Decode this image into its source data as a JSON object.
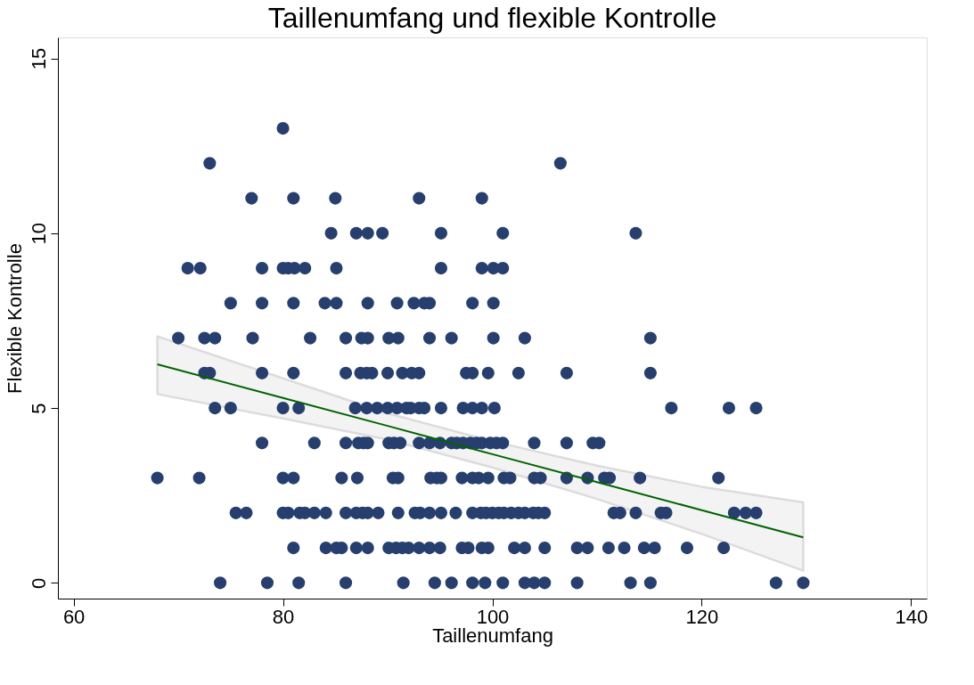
{
  "chart_data": {
    "type": "scatter",
    "title": "Taillenumfang und flexible Kontrolle",
    "xlabel": "Taillenumfang",
    "ylabel": "Flexible Kontrolle",
    "xlim": [
      58.5,
      141.5
    ],
    "ylim": [
      -0.45,
      15.6
    ],
    "xticks": [
      60,
      80,
      100,
      120,
      140
    ],
    "yticks": [
      0,
      5,
      10,
      15
    ],
    "grid": false,
    "series": [
      {
        "color": "#263f6e",
        "marker": "circle",
        "x": [
          80.0,
          73.0,
          106.5,
          77.0,
          81.0,
          85.0,
          93.0,
          99.0,
          84.6,
          87.0,
          88.1,
          89.5,
          95.1,
          101.0,
          113.7,
          70.9,
          72.1,
          78.0,
          80.0,
          80.5,
          81.1,
          82.1,
          85.1,
          95.1,
          99.0,
          100.1,
          101.0,
          75.0,
          78.0,
          81.0,
          84.0,
          85.1,
          88.1,
          90.9,
          92.5,
          93.5,
          94.0,
          98.1,
          100.1,
          70.0,
          72.5,
          73.5,
          77.1,
          82.6,
          86.0,
          87.5,
          88.1,
          90.1,
          91.0,
          94.0,
          96.1,
          100.1,
          103.1,
          115.1,
          72.5,
          73.0,
          78.0,
          81.0,
          86.0,
          87.4,
          88.0,
          88.5,
          90.0,
          91.4,
          92.3,
          93.0,
          97.5,
          98.1,
          99.6,
          102.5,
          107.1,
          115.1,
          73.5,
          75.0,
          80.0,
          81.5,
          86.9,
          88.0,
          89.0,
          90.0,
          90.9,
          91.8,
          92.2,
          93.0,
          93.5,
          95.1,
          97.2,
          98.1,
          99.0,
          100.2,
          117.1,
          122.6,
          125.2,
          78.0,
          83.0,
          86.0,
          87.2,
          87.7,
          88.1,
          90.1,
          90.6,
          91.2,
          93.0,
          94.0,
          95.0,
          96.1,
          96.6,
          97.2,
          97.9,
          98.5,
          99.0,
          99.8,
          100.4,
          101.0,
          104.0,
          107.1,
          109.6,
          110.2,
          68.0,
          72.0,
          80.0,
          81.0,
          85.6,
          87.1,
          90.5,
          91.0,
          94.1,
          94.7,
          95.1,
          97.1,
          98.1,
          98.7,
          99.6,
          101.1,
          101.7,
          104.0,
          104.6,
          107.1,
          109.1,
          110.7,
          111.2,
          114.1,
          121.6,
          75.5,
          76.5,
          80.0,
          80.5,
          81.6,
          82.1,
          83.0,
          84.1,
          86.0,
          87.0,
          87.6,
          88.1,
          89.1,
          91.0,
          92.6,
          93.1,
          94.0,
          95.1,
          96.5,
          98.1,
          98.9,
          99.4,
          100.0,
          100.6,
          101.1,
          101.8,
          102.5,
          103.1,
          103.9,
          104.4,
          105.0,
          111.6,
          112.2,
          113.7,
          116.1,
          116.6,
          123.1,
          124.2,
          125.2,
          81.0,
          84.1,
          85.1,
          85.6,
          87.0,
          88.1,
          90.1,
          90.8,
          91.4,
          92.0,
          93.0,
          94.0,
          95.0,
          97.1,
          97.7,
          99.0,
          99.6,
          102.1,
          103.1,
          105.0,
          108.1,
          109.1,
          111.1,
          112.6,
          114.5,
          115.5,
          118.6,
          122.1,
          74.0,
          78.5,
          81.5,
          86.0,
          91.5,
          94.5,
          96.1,
          98.1,
          99.3,
          101.0,
          103.1,
          104.0,
          105.0,
          108.1,
          113.2,
          115.1,
          127.1,
          129.7
        ],
        "values": [
          13,
          12,
          12,
          11,
          11,
          11,
          11,
          11,
          10,
          10,
          10,
          10,
          10,
          10,
          10,
          9,
          9,
          9,
          9,
          9,
          9,
          9,
          9,
          9,
          9,
          9,
          9,
          8,
          8,
          8,
          8,
          8,
          8,
          8,
          8,
          8,
          8,
          8,
          8,
          7,
          7,
          7,
          7,
          7,
          7,
          7,
          7,
          7,
          7,
          7,
          7,
          7,
          7,
          7,
          6,
          6,
          6,
          6,
          6,
          6,
          6,
          6,
          6,
          6,
          6,
          6,
          6,
          6,
          6,
          6,
          6,
          6,
          5,
          5,
          5,
          5,
          5,
          5,
          5,
          5,
          5,
          5,
          5,
          5,
          5,
          5,
          5,
          5,
          5,
          5,
          5,
          5,
          5,
          4,
          4,
          4,
          4,
          4,
          4,
          4,
          4,
          4,
          4,
          4,
          4,
          4,
          4,
          4,
          4,
          4,
          4,
          4,
          4,
          4,
          4,
          4,
          4,
          4,
          3,
          3,
          3,
          3,
          3,
          3,
          3,
          3,
          3,
          3,
          3,
          3,
          3,
          3,
          3,
          3,
          3,
          3,
          3,
          3,
          3,
          3,
          3,
          3,
          3,
          2,
          2,
          2,
          2,
          2,
          2,
          2,
          2,
          2,
          2,
          2,
          2,
          2,
          2,
          2,
          2,
          2,
          2,
          2,
          2,
          2,
          2,
          2,
          2,
          2,
          2,
          2,
          2,
          2,
          2,
          2,
          2,
          2,
          2,
          2,
          2,
          2,
          2,
          2,
          1,
          1,
          1,
          1,
          1,
          1,
          1,
          1,
          1,
          1,
          1,
          1,
          1,
          1,
          1,
          1,
          1,
          1,
          1,
          1,
          1,
          1,
          1,
          1,
          1,
          1,
          1,
          1,
          0,
          0,
          0,
          0,
          0,
          0,
          0,
          0,
          0,
          0,
          0,
          0,
          0,
          0,
          0,
          0,
          0,
          0
        ]
      },
      {
        "type": "line",
        "color": "#006400",
        "x": [
          68,
          80,
          90,
          100,
          110,
          120,
          129.7
        ],
        "values": [
          6.25,
          5.29,
          4.49,
          3.68,
          2.88,
          2.08,
          1.3
        ],
        "lower": [
          5.4,
          4.7,
          4.1,
          3.3,
          2.4,
          1.4,
          0.35
        ],
        "upper": [
          7.05,
          5.85,
          4.85,
          4.05,
          3.35,
          2.75,
          2.3
        ]
      }
    ]
  }
}
